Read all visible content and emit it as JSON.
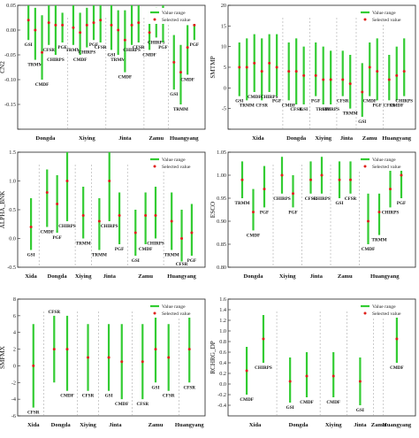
{
  "chart_data": [
    {
      "type": "range-dot",
      "ylabel": "CN2",
      "ylim": [
        -0.2,
        0.05
      ],
      "yticks": [
        -0.2,
        -0.15,
        -0.1,
        -0.05,
        0,
        0.05
      ],
      "ytick_labels": [
        "",
        "-0.15",
        "-0.10",
        "-0.05",
        "0.00",
        "0.05"
      ],
      "legend": {
        "placement": "top-right",
        "entries": [
          "Value range",
          "Selected value"
        ]
      },
      "groups": [
        "Dongda",
        "Xiying",
        "Jinta",
        "Zamu",
        "Huangyang"
      ],
      "series": [
        {
          "name": "GSI",
          "low": -0.02,
          "high": 0.05,
          "value": 0.02,
          "group": "Dongda",
          "label_pos": "below"
        },
        {
          "name": "TRMM",
          "low": -0.06,
          "high": 0.045,
          "value": 0.0,
          "group": "Dongda",
          "label_pos": "below"
        },
        {
          "name": "CMDF",
          "low": -0.1,
          "high": 0.03,
          "value": -0.045,
          "group": "Dongda",
          "label_pos": "below"
        },
        {
          "name": "CFSR",
          "low": -0.03,
          "high": 0.05,
          "value": 0.015,
          "group": "Dongda",
          "label_pos": "below"
        },
        {
          "name": "CHIRPS",
          "low": -0.05,
          "high": 0.05,
          "value": 0.01,
          "group": "Dongda",
          "label_pos": "below"
        },
        {
          "name": "PGF",
          "low": -0.025,
          "high": 0.035,
          "value": 0.01,
          "group": "Dongda",
          "label_pos": "below"
        },
        {
          "name": "TRMM",
          "low": -0.03,
          "high": 0.05,
          "value": 0.005,
          "group": "Xiying",
          "label_pos": "below"
        },
        {
          "name": "CMDF",
          "low": -0.05,
          "high": 0.035,
          "value": -0.005,
          "group": "Xiying",
          "label_pos": "below"
        },
        {
          "name": "CHIRPS",
          "low": -0.035,
          "high": 0.045,
          "value": 0.01,
          "group": "Xiying",
          "label_pos": "below"
        },
        {
          "name": "PGF",
          "low": -0.02,
          "high": 0.05,
          "value": 0.015,
          "group": "Xiying",
          "label_pos": "below"
        },
        {
          "name": "CFSR",
          "low": -0.025,
          "high": 0.05,
          "value": 0.02,
          "group": "Xiying",
          "label_pos": "below"
        },
        {
          "name": "GSI",
          "low": -0.04,
          "high": 0.05,
          "value": 0.01,
          "group": "Jinta",
          "label_pos": "below"
        },
        {
          "name": "TRMM",
          "low": -0.05,
          "high": 0.04,
          "value": 0.0,
          "group": "Jinta",
          "label_pos": "below"
        },
        {
          "name": "CMDF",
          "low": -0.085,
          "high": 0.04,
          "value": -0.02,
          "group": "Jinta",
          "label_pos": "below"
        },
        {
          "name": "CHIRPS",
          "low": -0.03,
          "high": 0.05,
          "value": 0.01,
          "group": "Jinta",
          "label_pos": "below"
        },
        {
          "name": "CFSR",
          "low": -0.025,
          "high": 0.05,
          "value": 0.015,
          "group": "Jinta",
          "label_pos": "below"
        },
        {
          "name": "CMDF",
          "low": -0.04,
          "high": 0.04,
          "value": -0.005,
          "group": "Zamu",
          "label_pos": "below"
        },
        {
          "name": "CHIRPS",
          "low": -0.015,
          "high": 0.045,
          "value": 0.015,
          "group": "Zamu",
          "label_pos": "below"
        },
        {
          "name": "PGF",
          "low": -0.025,
          "high": 0.05,
          "value": 0.02,
          "group": "Zamu",
          "label_pos": "below"
        },
        {
          "name": "GSI",
          "low": -0.12,
          "high": -0.01,
          "value": -0.065,
          "group": "Huangyang",
          "label_pos": "below"
        },
        {
          "name": "TRMM",
          "low": -0.15,
          "high": -0.03,
          "value": -0.085,
          "group": "Huangyang",
          "label_pos": "below"
        },
        {
          "name": "CMDF",
          "low": -0.09,
          "high": 0.01,
          "value": -0.035,
          "group": "Huangyang",
          "label_pos": "below"
        },
        {
          "name": "PGF",
          "low": -0.02,
          "high": 0.04,
          "value": 0.01,
          "group": "Huangyang",
          "label_pos": "below"
        }
      ]
    },
    {
      "type": "range-dot",
      "ylabel": "SMTMP",
      "ylim": [
        -10,
        20
      ],
      "yticks": [
        -10,
        -5,
        0,
        5,
        10,
        15,
        20
      ],
      "ytick_labels": [
        "",
        "-5",
        "0",
        "5",
        "10",
        "15",
        "20"
      ],
      "legend": {
        "placement": "top-right",
        "entries": [
          "Value range",
          "Selected value"
        ]
      },
      "groups": [
        "Xida",
        "Dongda",
        "Xiying",
        "Jinta",
        "Zamu",
        "Huangyang"
      ],
      "series": [
        {
          "name": "GSI",
          "low": -2,
          "high": 11,
          "value": 5,
          "group": "Xida",
          "label_pos": "below"
        },
        {
          "name": "TRMM",
          "low": -3,
          "high": 12,
          "value": 5,
          "group": "Xida",
          "label_pos": "below"
        },
        {
          "name": "CMDF",
          "low": -1,
          "high": 13,
          "value": 6,
          "group": "Xida",
          "label_pos": "below"
        },
        {
          "name": "CFSR",
          "low": -3,
          "high": 12,
          "value": 4,
          "group": "Xida",
          "label_pos": "below"
        },
        {
          "name": "CHIRPS",
          "low": -1,
          "high": 13,
          "value": 6,
          "group": "Xida",
          "label_pos": "below"
        },
        {
          "name": "PGF",
          "low": -2,
          "high": 13,
          "value": 5,
          "group": "Xida",
          "label_pos": "below"
        },
        {
          "name": "CMDF",
          "low": -3,
          "high": 11,
          "value": 4,
          "group": "Dongda",
          "label_pos": "below"
        },
        {
          "name": "CFSR",
          "low": -4,
          "high": 12,
          "value": 4,
          "group": "Dongda",
          "label_pos": "below"
        },
        {
          "name": "GSI",
          "low": -4,
          "high": 10,
          "value": 3,
          "group": "Dongda",
          "label_pos": "below"
        },
        {
          "name": "PGF",
          "low": -2,
          "high": 11,
          "value": 3,
          "group": "Xiying",
          "label_pos": "below"
        },
        {
          "name": "TRMM",
          "low": -4,
          "high": 10,
          "value": 2,
          "group": "Xiying",
          "label_pos": "below"
        },
        {
          "name": "CHIRPS",
          "low": -4,
          "high": 9,
          "value": 2,
          "group": "Xiying",
          "label_pos": "below"
        },
        {
          "name": "CFSR",
          "low": -2,
          "high": 9,
          "value": 2,
          "group": "Jinta",
          "label_pos": "below"
        },
        {
          "name": "TRMM",
          "low": -5,
          "high": 8,
          "value": 1,
          "group": "Jinta",
          "label_pos": "below"
        },
        {
          "name": "GSI",
          "low": -7,
          "high": 6,
          "value": -1,
          "group": "Zamu",
          "label_pos": "below"
        },
        {
          "name": "CMDF",
          "low": -2,
          "high": 11,
          "value": 5,
          "group": "Zamu",
          "label_pos": "below"
        },
        {
          "name": "PGF",
          "low": -3,
          "high": 12,
          "value": 4,
          "group": "Zamu",
          "label_pos": "below"
        },
        {
          "name": "CFSR",
          "low": -3,
          "high": 8,
          "value": 2,
          "group": "Huangyang",
          "label_pos": "below"
        },
        {
          "name": "CMDF",
          "low": -3,
          "high": 10,
          "value": 3,
          "group": "Huangyang",
          "label_pos": "below"
        },
        {
          "name": "CHIRPS",
          "low": -2,
          "high": 12,
          "value": 4,
          "group": "Huangyang",
          "label_pos": "below"
        }
      ]
    },
    {
      "type": "range-dot",
      "ylabel": "ALPHA_BNK",
      "ylim": [
        -0.5,
        1.5
      ],
      "yticks": [
        -0.5,
        0,
        0.5,
        1,
        1.5
      ],
      "ytick_labels": [
        "-0.5",
        "0.0",
        "0.5",
        "1.0",
        "1.5"
      ],
      "legend": {
        "placement": "top-right",
        "entries": [
          "Value range",
          "Selected value"
        ]
      },
      "groups": [
        "Xida",
        "Dongda",
        "Xiying",
        "Jinta",
        "Zamu",
        "Huangyang"
      ],
      "series": [
        {
          "name": "GSI",
          "low": -0.2,
          "high": 0.7,
          "value": 0.2,
          "group": "Xida",
          "label_pos": "below"
        },
        {
          "name": "CMDF",
          "low": 0.2,
          "high": 1.2,
          "value": 0.8,
          "group": "Dongda",
          "label_pos": "below"
        },
        {
          "name": "PGF",
          "low": 0.1,
          "high": 1.1,
          "value": 0.6,
          "group": "Dongda",
          "label_pos": "below"
        },
        {
          "name": "CHIRPS",
          "low": 0.3,
          "high": 1.5,
          "value": 1.0,
          "group": "Dongda",
          "label_pos": "below"
        },
        {
          "name": "TRMM",
          "low": 0.0,
          "high": 0.9,
          "value": 0.4,
          "group": "Xiying",
          "label_pos": "below"
        },
        {
          "name": "TRMM",
          "low": -0.2,
          "high": 0.7,
          "value": 0.3,
          "group": "Jinta",
          "label_pos": "below"
        },
        {
          "name": "CHIRPS",
          "low": 0.3,
          "high": 1.5,
          "value": 1.0,
          "group": "Jinta",
          "label_pos": "below"
        },
        {
          "name": "PGF",
          "low": -0.1,
          "high": 0.8,
          "value": 0.4,
          "group": "Jinta",
          "label_pos": "below"
        },
        {
          "name": "GSI",
          "low": -0.3,
          "high": 0.5,
          "value": 0.1,
          "group": "Zamu",
          "label_pos": "below"
        },
        {
          "name": "CMDF",
          "low": -0.1,
          "high": 0.8,
          "value": 0.4,
          "group": "Zamu",
          "label_pos": "below"
        },
        {
          "name": "CHIRPS",
          "low": 0.0,
          "high": 0.9,
          "value": 0.4,
          "group": "Zamu",
          "label_pos": "below"
        },
        {
          "name": "TRMM",
          "low": -0.2,
          "high": 0.8,
          "value": 0.3,
          "group": "Huangyang",
          "label_pos": "below"
        },
        {
          "name": "CFSR",
          "low": -0.4,
          "high": 0.5,
          "value": 0.0,
          "group": "Huangyang",
          "label_pos": "below"
        },
        {
          "name": "PGF",
          "low": -0.3,
          "high": 0.6,
          "value": 0.1,
          "group": "Huangyang",
          "label_pos": "below"
        }
      ]
    },
    {
      "type": "range-dot",
      "ylabel": "ESCO",
      "ylim": [
        0.8,
        1.05
      ],
      "yticks": [
        0.8,
        0.85,
        0.9,
        0.95,
        1.0,
        1.05
      ],
      "ytick_labels": [
        "0.80",
        "0.85",
        "0.90",
        "0.95",
        "1.00",
        "1.05"
      ],
      "legend": {
        "placement": "top-right",
        "entries": [
          "Value range",
          "Selected value"
        ]
      },
      "groups": [
        "Dongda",
        "Xiying",
        "Jinta",
        "Zamu",
        "Huangyang"
      ],
      "series": [
        {
          "name": "TRMM",
          "low": 0.95,
          "high": 1.03,
          "value": 0.99,
          "group": "Dongda",
          "label_pos": "below"
        },
        {
          "name": "CMDF",
          "low": 0.88,
          "high": 0.97,
          "value": 0.92,
          "group": "Dongda",
          "label_pos": "below"
        },
        {
          "name": "PGF",
          "low": 0.93,
          "high": 1.02,
          "value": 0.97,
          "group": "Dongda",
          "label_pos": "below"
        },
        {
          "name": "CHIRPS",
          "low": 0.96,
          "high": 1.04,
          "value": 1.0,
          "group": "Xiying",
          "label_pos": "below"
        },
        {
          "name": "PGF",
          "low": 0.93,
          "high": 1.0,
          "value": 0.96,
          "group": "Xiying",
          "label_pos": "below"
        },
        {
          "name": "CFSR",
          "low": 0.96,
          "high": 1.03,
          "value": 0.99,
          "group": "Jinta",
          "label_pos": "below"
        },
        {
          "name": "CHIRPS",
          "low": 0.96,
          "high": 1.04,
          "value": 1.0,
          "group": "Jinta",
          "label_pos": "below"
        },
        {
          "name": "GSI",
          "low": 0.95,
          "high": 1.03,
          "value": 0.99,
          "group": "Zamu",
          "label_pos": "below"
        },
        {
          "name": "CFSR",
          "low": 0.96,
          "high": 1.03,
          "value": 0.99,
          "group": "Zamu",
          "label_pos": "below"
        },
        {
          "name": "CMDF",
          "low": 0.85,
          "high": 0.96,
          "value": 0.9,
          "group": "Huangyang",
          "label_pos": "below"
        },
        {
          "name": "TRMM",
          "low": 0.87,
          "high": 0.96,
          "value": 0.92,
          "group": "Huangyang",
          "label_pos": "below"
        },
        {
          "name": "CHIRPS",
          "low": 0.93,
          "high": 1.01,
          "value": 0.97,
          "group": "Huangyang",
          "label_pos": "below"
        },
        {
          "name": "PGF",
          "low": 0.95,
          "high": 1.04,
          "value": 1.0,
          "group": "Huangyang",
          "label_pos": "below"
        }
      ]
    },
    {
      "type": "range-dot",
      "ylabel": "SMFMX",
      "ylim": [
        -6,
        8
      ],
      "yticks": [
        -6,
        -4,
        -2,
        0,
        2,
        4,
        6,
        8
      ],
      "ytick_labels": [
        "-6",
        "-4",
        "-2",
        "0",
        "2",
        "4",
        "6",
        "8"
      ],
      "legend": {
        "placement": "top-right",
        "entries": [
          "Value range",
          "Selected value"
        ]
      },
      "groups": [
        "Xida",
        "Dongda",
        "Xiying",
        "Jinta",
        "Zamu",
        "Huangyang"
      ],
      "series": [
        {
          "name": "CFSR",
          "low": -5,
          "high": 5,
          "value": 0,
          "group": "Xida",
          "label_pos": "below"
        },
        {
          "name": "CFSR",
          "low": -2,
          "high": 6,
          "value": 2,
          "group": "Dongda",
          "label_pos": "above"
        },
        {
          "name": "CMDF",
          "low": -3,
          "high": 6,
          "value": 2,
          "group": "Dongda",
          "label_pos": "below"
        },
        {
          "name": "CFSR",
          "low": -3,
          "high": 5,
          "value": 1,
          "group": "Xiying",
          "label_pos": "below"
        },
        {
          "name": "GSI",
          "low": -3,
          "high": 5,
          "value": 1,
          "group": "Jinta",
          "label_pos": "below"
        },
        {
          "name": "CMDF",
          "low": -4,
          "high": 5,
          "value": 0.5,
          "group": "Jinta",
          "label_pos": "below"
        },
        {
          "name": "CFSR",
          "low": -4,
          "high": 5,
          "value": 0.5,
          "group": "Zamu",
          "label_pos": "below"
        },
        {
          "name": "GSI",
          "low": -2,
          "high": 6,
          "value": 2,
          "group": "Zamu",
          "label_pos": "below"
        },
        {
          "name": "CFSR",
          "low": -3,
          "high": 5,
          "value": 1,
          "group": "Zamu",
          "label_pos": "below"
        },
        {
          "name": "CFSR",
          "low": -2,
          "high": 6,
          "value": 2,
          "group": "Huangyang",
          "label_pos": "below"
        }
      ]
    },
    {
      "type": "range-dot",
      "ylabel": "RCHRG_DP",
      "ylim": [
        -0.6,
        1.6
      ],
      "yticks": [
        -0.4,
        -0.2,
        0,
        0.2,
        0.4,
        0.6,
        0.8,
        1.0,
        1.2,
        1.4,
        1.6
      ],
      "ytick_labels": [
        "-0.4",
        "-0.2",
        "0.0",
        "0.2",
        "0.4",
        "0.6",
        "0.8",
        "1.0",
        "1.2",
        "1.4",
        "1.6"
      ],
      "legend": {
        "placement": "top-right",
        "entries": [
          "Value range",
          "Selected value"
        ]
      },
      "groups": [
        "Xida",
        "Dongda",
        "Xiying",
        "Jinta",
        "Zamu",
        "Huangyang"
      ],
      "series": [
        {
          "name": "CMDF",
          "low": -0.2,
          "high": 0.7,
          "value": 0.25,
          "group": "Xida",
          "label_pos": "below"
        },
        {
          "name": "CHIRPS",
          "low": 0.4,
          "high": 1.3,
          "value": 0.85,
          "group": "Xida",
          "label_pos": "below"
        },
        {
          "name": "GSI",
          "low": -0.35,
          "high": 0.5,
          "value": 0.05,
          "group": "Dongda",
          "label_pos": "below"
        },
        {
          "name": "CMDF",
          "low": -0.25,
          "high": 0.6,
          "value": 0.15,
          "group": "Dongda",
          "label_pos": "below"
        },
        {
          "name": "CMDF",
          "low": -0.25,
          "high": 0.6,
          "value": 0.15,
          "group": "Xiying",
          "label_pos": "below"
        },
        {
          "name": "GSI",
          "low": -0.4,
          "high": 0.5,
          "value": 0.05,
          "group": "Jinta",
          "label_pos": "below"
        },
        {
          "name": "CMDF",
          "low": 0.4,
          "high": 1.35,
          "value": 0.85,
          "group": "Huangyang",
          "label_pos": "below"
        }
      ]
    }
  ]
}
